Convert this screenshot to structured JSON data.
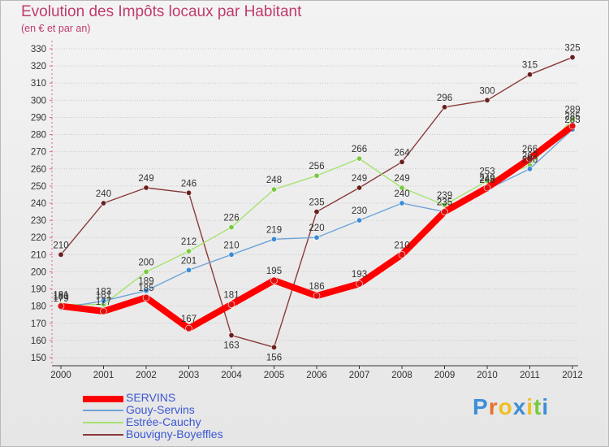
{
  "chart_data": {
    "type": "line",
    "title": "Evolution des Impôts locaux par Habitant",
    "subtitle": "(en € et par an)",
    "xlabel": "",
    "ylabel": "",
    "ylim": [
      150,
      330
    ],
    "y_ticks": [
      "150",
      "160",
      "170",
      "180",
      "190",
      "200",
      "210",
      "220",
      "230",
      "240",
      "250",
      "260",
      "270",
      "280",
      "290",
      "300",
      "310",
      "320",
      "330"
    ],
    "categories": [
      "2000",
      "2001",
      "2002",
      "2003",
      "2004",
      "2005",
      "2006",
      "2007",
      "2008",
      "2009",
      "2010",
      "2011",
      "2012"
    ],
    "series": [
      {
        "name": "SERVINS",
        "color": "#ff0000",
        "dot": "#e01010",
        "values": [
          180,
          177,
          185,
          167,
          181,
          195,
          186,
          193,
          210,
          235,
          249,
          266,
          285
        ],
        "labels": [
          "180",
          "177",
          "185",
          "167",
          "181",
          "195",
          "186",
          "193",
          "210",
          "235",
          "249",
          "266",
          "285"
        ]
      },
      {
        "name": "Gouy-Servins",
        "color": "#6fa3d8",
        "dot": "#3a8ad6",
        "values": [
          179,
          183,
          189,
          201,
          210,
          219,
          220,
          230,
          240,
          235,
          248,
          260,
          283
        ],
        "labels": [
          "179",
          "183",
          "189",
          "201",
          "210",
          "219",
          "220",
          "230",
          "240",
          "235",
          "248",
          "260",
          "283"
        ]
      },
      {
        "name": "Estrée-Cauchy",
        "color": "#a6e270",
        "dot": "#7ac943",
        "values": [
          181,
          181,
          200,
          212,
          226,
          248,
          256,
          266,
          249,
          239,
          253,
          262,
          289
        ],
        "labels": [
          "181",
          "181",
          "200",
          "212",
          "226",
          "248",
          "256",
          "266",
          "249",
          "239",
          "253",
          "262",
          "289"
        ]
      },
      {
        "name": "Bouvigny-Boyeffles",
        "color": "#8a3a3a",
        "dot": "#6a1f1f",
        "values": [
          210,
          240,
          249,
          246,
          163,
          156,
          235,
          249,
          264,
          296,
          300,
          315,
          325
        ],
        "labels": [
          "210",
          "240",
          "249",
          "246",
          "163",
          "156",
          "235",
          "249",
          "264",
          "296",
          "300",
          "315",
          "325"
        ]
      }
    ]
  },
  "brand": {
    "name": "Proxiti",
    "letters": [
      "P",
      "r",
      "o",
      "x",
      "i",
      "t",
      "i"
    ]
  }
}
